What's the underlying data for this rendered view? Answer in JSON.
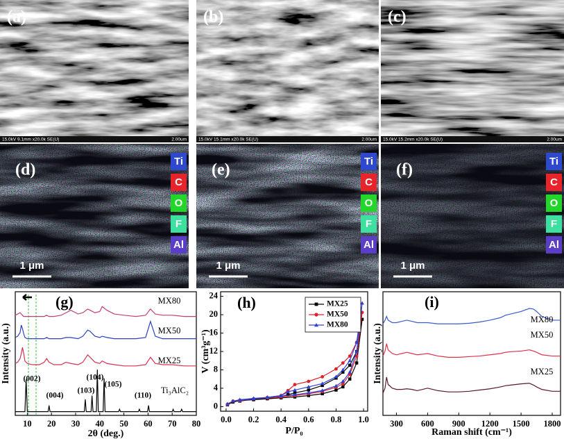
{
  "sem_images": [
    {
      "label": "(a)",
      "info": "15.0kV 9.1mm x20.0k SE(U)",
      "scale": "2.00um"
    },
    {
      "label": "(b)",
      "info": "15.0kV 15.1mm x20.0k SE(U)",
      "scale": "2.00um"
    },
    {
      "label": "(c)",
      "info": "15.0kV 15.2mm x20.0k SE(U)",
      "scale": "2.00um"
    }
  ],
  "eds_maps": [
    {
      "label": "(d)",
      "scale_bar": "1 μm"
    },
    {
      "label": "(e)",
      "scale_bar": "1 μm"
    },
    {
      "label": "(f)",
      "scale_bar": "1 μm"
    }
  ],
  "eds_elements": [
    {
      "name": "Ti",
      "color": "#2f48d0"
    },
    {
      "name": "C",
      "color": "#e8242a"
    },
    {
      "name": "O",
      "color": "#22d62a"
    },
    {
      "name": "F",
      "color": "#3ee0a0"
    },
    {
      "name": "Al",
      "color": "#5a3ec8"
    }
  ],
  "chart_data": [
    {
      "type": "line",
      "label": "(g)",
      "x_label": "2θ (deg.)",
      "y_label": "Intensity (a.u.)",
      "xlim": [
        5,
        80
      ],
      "xticks": [
        10,
        20,
        30,
        40,
        50,
        60,
        70,
        80
      ],
      "ylim": [
        0,
        100
      ],
      "annotations": [
        "(002)",
        "(004)",
        "(103)",
        "(104)",
        "(105)",
        "(110)"
      ],
      "series": [
        {
          "name": "MX80",
          "color": "#c0407a",
          "x": [
            5,
            6,
            7,
            7.5,
            8,
            8.5,
            9,
            10,
            12,
            15,
            17,
            18,
            19,
            21,
            24,
            26,
            28,
            31,
            33,
            35,
            36,
            38,
            40,
            41,
            43,
            46,
            50,
            55,
            59,
            61,
            63,
            66,
            70,
            75,
            80
          ],
          "values": [
            81,
            82,
            83,
            82,
            81,
            80,
            80,
            80,
            80,
            80,
            80,
            81,
            80,
            80,
            81,
            83,
            85,
            82,
            83,
            86,
            85,
            83,
            84,
            88,
            85,
            82,
            81,
            80,
            81,
            86,
            82,
            81,
            81,
            80,
            80
          ]
        },
        {
          "name": "MX50",
          "color": "#2c3fbf",
          "x": [
            5,
            6,
            7,
            7.5,
            8,
            8.5,
            9,
            10,
            12,
            15,
            17,
            18,
            19,
            21,
            24,
            26,
            28,
            31,
            33,
            35,
            36,
            38,
            40,
            41,
            43,
            46,
            50,
            55,
            59,
            61,
            63,
            66,
            70,
            75,
            80
          ],
          "values": [
            63,
            64,
            67,
            73,
            70,
            66,
            63,
            62,
            62,
            62,
            62,
            63,
            62,
            62,
            62,
            63,
            63,
            62,
            64,
            69,
            68,
            64,
            63,
            64,
            63,
            62,
            62,
            62,
            63,
            76,
            64,
            62,
            62,
            62,
            62
          ]
        },
        {
          "name": "MX25",
          "color": "#d8304f",
          "x": [
            5,
            6,
            7,
            7.5,
            8,
            8.5,
            9,
            10,
            12,
            15,
            17,
            18,
            19,
            21,
            24,
            26,
            28,
            31,
            33,
            35,
            36,
            38,
            40,
            41,
            43,
            46,
            50,
            55,
            59,
            61,
            63,
            66,
            70,
            75,
            80
          ],
          "values": [
            42,
            43,
            46,
            50,
            55,
            50,
            44,
            42,
            41,
            41,
            43,
            46,
            43,
            41,
            41,
            43,
            42,
            41,
            43,
            49,
            47,
            43,
            42,
            44,
            42,
            41,
            40,
            40,
            41,
            47,
            42,
            41,
            41,
            40,
            40
          ]
        },
        {
          "name": "Ti₃AlC₂",
          "color": "#000000",
          "x": [
            5,
            9,
            9.5,
            10,
            18.6,
            19,
            19.4,
            33.6,
            34,
            34.4,
            36.4,
            36.8,
            37.2,
            38.6,
            39,
            39.4,
            41.4,
            41.8,
            42.2,
            47.8,
            48.2,
            48.6,
            56,
            56.4,
            56.8,
            59.8,
            60.2,
            60.6,
            70,
            70.4,
            70.8,
            73.5,
            73.9,
            74.3,
            80
          ],
          "values": [
            3,
            3,
            29,
            3,
            3,
            8,
            3,
            3,
            13,
            3,
            3,
            16,
            3,
            3,
            37,
            3,
            3,
            30,
            3,
            3,
            5,
            3,
            3,
            5,
            3,
            3,
            8,
            3,
            3,
            5,
            3,
            3,
            5,
            3,
            3
          ]
        }
      ]
    },
    {
      "type": "line",
      "label": "(h)",
      "x_label": "P/P₀",
      "y_label": "V (cm³g⁻¹)",
      "xlim": [
        -0.04,
        1.03
      ],
      "xticks": [
        {
          "value": 0,
          "label": "0.0"
        },
        0.2,
        0.4,
        0.6,
        0.8,
        {
          "value": 1,
          "label": "1.0"
        }
      ],
      "ylim": [
        -1,
        25
      ],
      "yticks": [
        0,
        4,
        8,
        12,
        16,
        20,
        24
      ],
      "legend": "upper right",
      "series": [
        {
          "name": "MX25",
          "color": "#000000",
          "marker": "square",
          "x": [
            0.01,
            0.05,
            0.1,
            0.2,
            0.3,
            0.4,
            0.5,
            0.6,
            0.7,
            0.8,
            0.85,
            0.9,
            0.95,
            0.99,
            0.95,
            0.9,
            0.85,
            0.8,
            0.7,
            0.6,
            0.5,
            0.45,
            0.4,
            0.3,
            0.2,
            0.1
          ],
          "values": [
            0.4,
            1.0,
            1.3,
            1.5,
            1.7,
            1.9,
            2.1,
            2.4,
            2.8,
            3.6,
            4.3,
            6,
            9.5,
            19,
            12,
            9,
            7.5,
            6.2,
            4.6,
            3.6,
            3.0,
            2.6,
            2.2,
            1.8,
            1.6,
            1.2
          ]
        },
        {
          "name": "MX50",
          "color": "#e0202a",
          "marker": "circle",
          "x": [
            0.01,
            0.05,
            0.1,
            0.2,
            0.3,
            0.4,
            0.5,
            0.6,
            0.7,
            0.8,
            0.85,
            0.9,
            0.95,
            0.99,
            0.95,
            0.9,
            0.85,
            0.8,
            0.7,
            0.6,
            0.5,
            0.45,
            0.4,
            0.3,
            0.2,
            0.1
          ],
          "values": [
            0.5,
            1.2,
            1.4,
            1.7,
            1.9,
            2.1,
            2.4,
            2.8,
            3.3,
            4.2,
            5,
            7,
            11,
            20.5,
            14,
            11,
            9.5,
            8.2,
            6.5,
            5.5,
            4.8,
            3.5,
            2.4,
            2.0,
            1.7,
            1.3
          ]
        },
        {
          "name": "MX80",
          "color": "#3040d0",
          "marker": "triangle",
          "x": [
            0.01,
            0.05,
            0.1,
            0.2,
            0.3,
            0.4,
            0.5,
            0.6,
            0.7,
            0.8,
            0.85,
            0.9,
            0.95,
            0.99,
            0.95,
            0.9,
            0.85,
            0.8,
            0.7,
            0.6,
            0.5,
            0.45,
            0.4,
            0.3,
            0.2,
            0.1
          ],
          "values": [
            0.6,
            1.2,
            1.5,
            1.8,
            2.0,
            2.3,
            2.6,
            3.0,
            3.5,
            4.5,
            5.5,
            7.5,
            12,
            22.5,
            14,
            10,
            8,
            6.5,
            5.0,
            4.3,
            3.6,
            3.2,
            2.4,
            2.0,
            1.7,
            1.4
          ]
        }
      ]
    },
    {
      "type": "line",
      "label": "(i)",
      "x_label": "Raman shift (cm⁻¹)",
      "y_label": "Intensity (a.u.)",
      "xlim": [
        170,
        1880
      ],
      "xticks": [
        300,
        600,
        900,
        1200,
        1500,
        1800
      ],
      "ylim": [
        0,
        100
      ],
      "series": [
        {
          "name": "MX80",
          "color": "#3a5ad0",
          "x": [
            170,
            190,
            205,
            220,
            260,
            300,
            350,
            400,
            450,
            500,
            600,
            700,
            800,
            900,
            1000,
            1100,
            1200,
            1300,
            1350,
            1400,
            1500,
            1580,
            1620,
            1650,
            1700,
            1800,
            1880
          ],
          "values": [
            74,
            77,
            80,
            77,
            75,
            75,
            76,
            77,
            76,
            75,
            75,
            74,
            74,
            74,
            74.5,
            75.5,
            77,
            79,
            81,
            82,
            84,
            86.5,
            86,
            84,
            80,
            77,
            77
          ]
        },
        {
          "name": "MX50",
          "color": "#e0304a",
          "x": [
            170,
            190,
            205,
            220,
            260,
            300,
            350,
            400,
            450,
            500,
            600,
            700,
            800,
            900,
            1000,
            1100,
            1200,
            1300,
            1350,
            1400,
            1500,
            1580,
            1620,
            1650,
            1700,
            1800,
            1880
          ],
          "values": [
            48,
            52,
            58,
            53,
            50,
            49,
            50,
            51,
            50,
            49,
            50,
            48,
            47,
            47,
            47.5,
            48,
            49,
            50,
            51,
            51.5,
            52,
            53,
            52,
            51,
            49,
            48,
            48
          ]
        },
        {
          "name": "MX25",
          "color": "#5a1828",
          "x": [
            170,
            190,
            205,
            220,
            260,
            300,
            350,
            400,
            450,
            500,
            600,
            700,
            800,
            900,
            1000,
            1100,
            1200,
            1300,
            1350,
            1400,
            1500,
            1580,
            1620,
            1650,
            1700,
            1800,
            1880
          ],
          "values": [
            18,
            22,
            31,
            25,
            22,
            21,
            21,
            21.5,
            21,
            20,
            22,
            20,
            19,
            19,
            19.5,
            20.5,
            21.5,
            23,
            24,
            24.5,
            25.5,
            26,
            24.5,
            23,
            21,
            19.5,
            19.5
          ]
        }
      ]
    }
  ]
}
